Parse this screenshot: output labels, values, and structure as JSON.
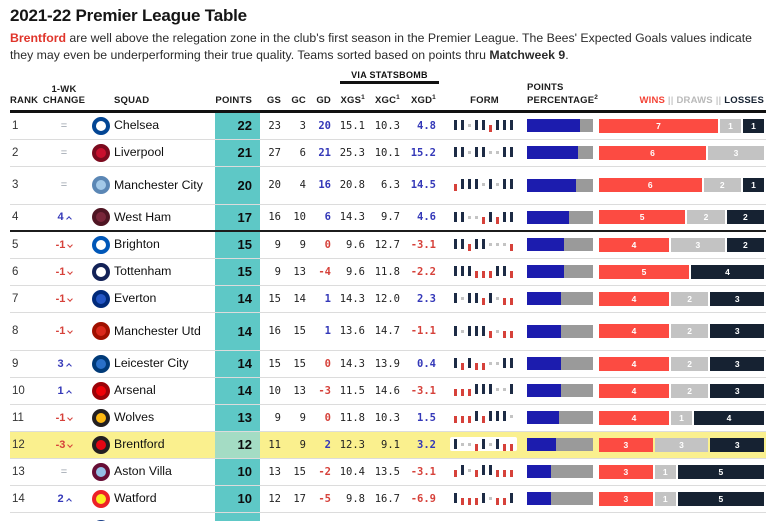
{
  "title": "2021-22 Premier League Table",
  "subtitle": {
    "lead": "Brentford",
    "body": " are well above the relegation zone in the club's first season in the Premier League. The Bees' Expected Goals values indicate they may even be underperforming their true quality. Teams sorted based on points thru ",
    "bold": "Matchweek 9",
    "tail": "."
  },
  "header": {
    "rank": "RANK",
    "change_line1": "1-WK",
    "change_line2": "CHANGE",
    "squad": "SQUAD",
    "points": "POINTS",
    "gs": "GS",
    "gc": "GC",
    "gd": "GD",
    "via": "VIA STATSBOMB",
    "xgs": "XGS",
    "xgc": "XGC",
    "xgd": "XGD",
    "sup1": "1",
    "sup2": "2",
    "form": "FORM",
    "pct_line1": "POINTS",
    "pct_line2": "PERCENTAGE",
    "wins": "WINS",
    "sep1": "||",
    "draws": "DRAWS",
    "sep2": "||",
    "losses": "LOSSES"
  },
  "colors": {
    "points_teal": "#5ec8c6",
    "highlight_yellow": "#faf08e",
    "win_red": "#fc4b42",
    "draw_gray": "#c3c3c3",
    "loss_navy": "#162232",
    "pct_fill_navy": "#1c1cae",
    "pct_rest_gray": "#9a9a9a",
    "positive_blue": "#3438b8",
    "negative_red": "#d6413a",
    "form_win": "#1d2b45",
    "form_draw": "#c4c4c4",
    "form_loss": "#d6413a",
    "brand_red": "#e0352b"
  },
  "rows": [
    {
      "rank": 1,
      "change": "=",
      "dir": "same",
      "squad": "Chelsea",
      "crest_ring": "#034694",
      "crest_fill": "#ffffff",
      "points": 22,
      "gs": 23,
      "gc": 3,
      "gd": "20",
      "xgs": "15.1",
      "xgc": "10.3",
      "xgd": "4.8",
      "form": "WWDWWLWWW",
      "pct": 81,
      "wins": 7,
      "draws": 1,
      "losses": 1,
      "tall": false,
      "highlight": false
    },
    {
      "rank": 2,
      "change": "=",
      "dir": "same",
      "squad": "Liverpool",
      "crest_ring": "#7c0a1e",
      "crest_fill": "#c8102e",
      "points": 21,
      "gs": 27,
      "gc": 6,
      "gd": "21",
      "xgs": "25.3",
      "xgc": "10.1",
      "xgd": "15.2",
      "form": "WWDWWDDWW",
      "pct": 78,
      "wins": 6,
      "draws": 3,
      "losses": 0,
      "tall": false,
      "highlight": false
    },
    {
      "rank": 3,
      "change": "=",
      "dir": "same",
      "squad": "Manchester City",
      "crest_ring": "#5b87b5",
      "crest_fill": "#a3c9e8",
      "points": 20,
      "gs": 20,
      "gc": 4,
      "gd": "16",
      "xgs": "20.8",
      "xgc": "6.3",
      "xgd": "14.5",
      "form": "LWWWDWDWW",
      "pct": 74,
      "wins": 6,
      "draws": 2,
      "losses": 1,
      "tall": true,
      "highlight": false
    },
    {
      "rank": 4,
      "change": "4",
      "dir": "up",
      "squad": "West Ham",
      "crest_ring": "#4f1523",
      "crest_fill": "#7a263a",
      "points": 17,
      "gs": 16,
      "gc": 10,
      "gd": "6",
      "xgs": "14.3",
      "xgc": "9.7",
      "xgd": "4.6",
      "form": "WWDDLWLWW",
      "pct": 63,
      "wins": 5,
      "draws": 2,
      "losses": 2,
      "tall": false,
      "highlight": false
    },
    {
      "rank": 5,
      "change": "-1",
      "dir": "down",
      "squad": "Brighton",
      "crest_ring": "#0057b8",
      "crest_fill": "#ffffff",
      "points": 15,
      "gs": 9,
      "gc": 9,
      "gd": "0",
      "xgs": "9.6",
      "xgc": "12.7",
      "xgd": "-3.1",
      "form": "WWLWWDDDL",
      "pct": 56,
      "wins": 4,
      "draws": 3,
      "losses": 2,
      "tall": false,
      "highlight": false
    },
    {
      "rank": 6,
      "change": "-1",
      "dir": "down",
      "squad": "Tottenham",
      "crest_ring": "#132257",
      "crest_fill": "#ffffff",
      "points": 15,
      "gs": 9,
      "gc": 13,
      "gd": "-4",
      "xgs": "9.6",
      "xgc": "11.8",
      "xgd": "-2.2",
      "form": "WWWLLLWWL",
      "pct": 56,
      "wins": 5,
      "draws": 0,
      "losses": 4,
      "tall": false,
      "highlight": false
    },
    {
      "rank": 7,
      "change": "-1",
      "dir": "down",
      "squad": "Everton",
      "crest_ring": "#002a7a",
      "crest_fill": "#2456c5",
      "points": 14,
      "gs": 15,
      "gc": 14,
      "gd": "1",
      "xgs": "14.3",
      "xgc": "12.0",
      "xgd": "2.3",
      "form": "WDWWLWDLL",
      "pct": 52,
      "wins": 4,
      "draws": 2,
      "losses": 3,
      "tall": false,
      "highlight": false
    },
    {
      "rank": 8,
      "change": "-1",
      "dir": "down",
      "squad": "Manchester Utd",
      "crest_ring": "#a01000",
      "crest_fill": "#da291c",
      "points": 14,
      "gs": 16,
      "gc": 15,
      "gd": "1",
      "xgs": "13.6",
      "xgc": "14.7",
      "xgd": "-1.1",
      "form": "WDWWWLDLL",
      "pct": 52,
      "wins": 4,
      "draws": 2,
      "losses": 3,
      "tall": true,
      "highlight": false
    },
    {
      "rank": 9,
      "change": "3",
      "dir": "up",
      "squad": "Leicester City",
      "crest_ring": "#003a78",
      "crest_fill": "#2a70c8",
      "points": 14,
      "gs": 15,
      "gc": 15,
      "gd": "0",
      "xgs": "14.3",
      "xgc": "13.9",
      "xgd": "0.4",
      "form": "WLWLLDDWW",
      "pct": 52,
      "wins": 4,
      "draws": 2,
      "losses": 3,
      "tall": false,
      "highlight": false
    },
    {
      "rank": 10,
      "change": "1",
      "dir": "up",
      "squad": "Arsenal",
      "crest_ring": "#9c0207",
      "crest_fill": "#ef0107",
      "points": 14,
      "gs": 10,
      "gc": 13,
      "gd": "-3",
      "xgs": "11.5",
      "xgc": "14.6",
      "xgd": "-3.1",
      "form": "LLLWWWDDW",
      "pct": 52,
      "wins": 4,
      "draws": 2,
      "losses": 3,
      "tall": false,
      "highlight": false
    },
    {
      "rank": 11,
      "change": "-1",
      "dir": "down",
      "squad": "Wolves",
      "crest_ring": "#231f20",
      "crest_fill": "#fdb913",
      "points": 13,
      "gs": 9,
      "gc": 9,
      "gd": "0",
      "xgs": "11.8",
      "xgc": "10.3",
      "xgd": "1.5",
      "form": "LLLWLWWWD",
      "pct": 48,
      "wins": 4,
      "draws": 1,
      "losses": 4,
      "tall": false,
      "highlight": false
    },
    {
      "rank": 12,
      "change": "-3",
      "dir": "down",
      "squad": "Brentford",
      "crest_ring": "#231f20",
      "crest_fill": "#e30613",
      "points": 12,
      "gs": 11,
      "gc": 9,
      "gd": "2",
      "xgs": "12.3",
      "xgc": "9.1",
      "xgd": "3.2",
      "form": "WDDLWDWLL",
      "pct": 44,
      "wins": 3,
      "draws": 3,
      "losses": 3,
      "tall": false,
      "highlight": true
    },
    {
      "rank": 13,
      "change": "=",
      "dir": "same",
      "squad": "Aston Villa",
      "crest_ring": "#670e36",
      "crest_fill": "#95bfe5",
      "points": 10,
      "gs": 13,
      "gc": 15,
      "gd": "-2",
      "xgs": "10.4",
      "xgc": "13.5",
      "xgd": "-3.1",
      "form": "LWDLWWLLL",
      "pct": 37,
      "wins": 3,
      "draws": 1,
      "losses": 5,
      "tall": false,
      "highlight": false
    },
    {
      "rank": 14,
      "change": "2",
      "dir": "up",
      "squad": "Watford",
      "crest_ring": "#ed2127",
      "crest_fill": "#fbee23",
      "points": 10,
      "gs": 12,
      "gc": 17,
      "gd": "-5",
      "xgs": "9.8",
      "xgc": "16.7",
      "xgd": "-6.9",
      "form": "WLLLWDLLW",
      "pct": 37,
      "wins": 3,
      "draws": 1,
      "losses": 5,
      "tall": false,
      "highlight": false
    }
  ],
  "partial_row": {
    "crest_ring": "#1d428a",
    "crest_fill": "#ffcd00"
  },
  "chart_data": {
    "type": "table",
    "title": "2021-22 Premier League Table",
    "columns": [
      "RANK",
      "1-WK CHANGE",
      "SQUAD",
      "POINTS",
      "GS",
      "GC",
      "GD",
      "XGS",
      "XGC",
      "XGD",
      "FORM (9 matches, W/D/L)",
      "POINTS PERCENTAGE %",
      "WINS",
      "DRAWS",
      "LOSSES"
    ],
    "rows": [
      [
        1,
        "=",
        "Chelsea",
        22,
        23,
        3,
        20,
        15.1,
        10.3,
        4.8,
        "WWDWWLWWW",
        81,
        7,
        1,
        1
      ],
      [
        2,
        "=",
        "Liverpool",
        21,
        27,
        6,
        21,
        25.3,
        10.1,
        15.2,
        "WWDWWDDWW",
        78,
        6,
        3,
        0
      ],
      [
        3,
        "=",
        "Manchester City",
        20,
        20,
        4,
        16,
        20.8,
        6.3,
        14.5,
        "LWWWDWDWW",
        74,
        6,
        2,
        1
      ],
      [
        4,
        "+4",
        "West Ham",
        17,
        16,
        10,
        6,
        14.3,
        9.7,
        4.6,
        "WWDDLWLWW",
        63,
        5,
        2,
        2
      ],
      [
        5,
        "-1",
        "Brighton",
        15,
        9,
        9,
        0,
        9.6,
        12.7,
        -3.1,
        "WWLWWDDDL",
        56,
        4,
        3,
        2
      ],
      [
        6,
        "-1",
        "Tottenham",
        15,
        9,
        13,
        -4,
        9.6,
        11.8,
        -2.2,
        "WWWLLLWWL",
        56,
        5,
        0,
        4
      ],
      [
        7,
        "-1",
        "Everton",
        14,
        15,
        14,
        1,
        14.3,
        12.0,
        2.3,
        "WDWWLWDLL",
        52,
        4,
        2,
        3
      ],
      [
        8,
        "-1",
        "Manchester Utd",
        14,
        16,
        15,
        1,
        13.6,
        14.7,
        -1.1,
        "WDWWWLDLL",
        52,
        4,
        2,
        3
      ],
      [
        9,
        "+3",
        "Leicester City",
        14,
        15,
        15,
        0,
        14.3,
        13.9,
        0.4,
        "WLWLLDDWW",
        52,
        4,
        2,
        3
      ],
      [
        10,
        "+1",
        "Arsenal",
        14,
        10,
        13,
        -3,
        11.5,
        14.6,
        -3.1,
        "LLLWWWDDW",
        52,
        4,
        2,
        3
      ],
      [
        11,
        "-1",
        "Wolves",
        13,
        9,
        9,
        0,
        11.8,
        10.3,
        1.5,
        "LLLWLWWWD",
        48,
        4,
        1,
        4
      ],
      [
        12,
        "-3",
        "Brentford",
        12,
        11,
        9,
        2,
        12.3,
        9.1,
        3.2,
        "WDDLWDWLL",
        44,
        3,
        3,
        3
      ],
      [
        13,
        "=",
        "Aston Villa",
        10,
        13,
        15,
        -2,
        10.4,
        13.5,
        -3.1,
        "LWDLWWLLL",
        37,
        3,
        1,
        5
      ],
      [
        14,
        "+2",
        "Watford",
        10,
        12,
        17,
        -5,
        9.8,
        16.7,
        -6.9,
        "WLLLWDLLW",
        37,
        3,
        1,
        5
      ]
    ]
  }
}
